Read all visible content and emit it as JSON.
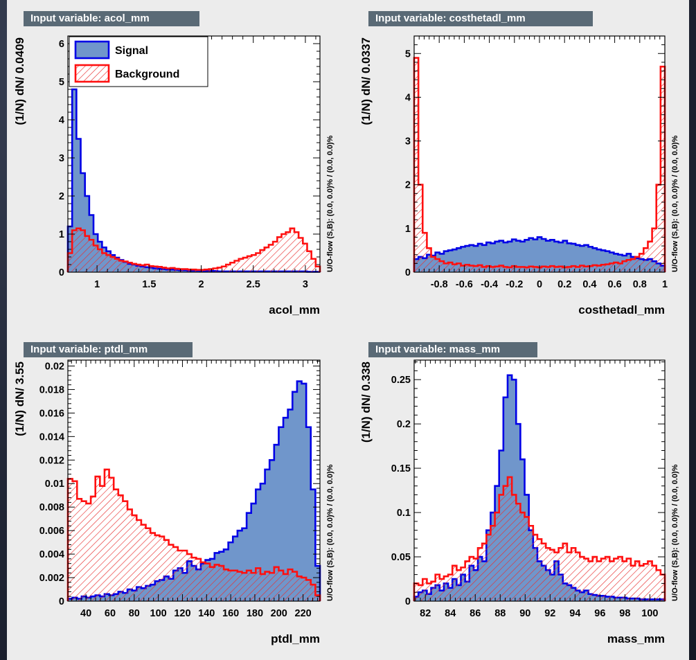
{
  "colors": {
    "signal_fill": "#7096cb",
    "signal_line": "#0000e6",
    "background_line": "#ff1010",
    "background_hatch": "#e83030"
  },
  "legend": {
    "signal": "Signal",
    "background": "Background"
  },
  "chart_data": [
    {
      "type": "histogram",
      "panel_title": "Input variable: acol_mm",
      "xlabel": "acol_mm",
      "ylabel": "(1/N) dN/ 0.0409",
      "side_label": "U/O-flow (S,B): (0.0, 0.0)% / (0.0, 0.0)%",
      "xlim": [
        0.72,
        3.14
      ],
      "ylim": [
        0,
        6.2
      ],
      "xticks": [
        1,
        1.5,
        2,
        2.5,
        3
      ],
      "xtick_labels": [
        "1",
        "1.5",
        "2",
        "2.5",
        "3"
      ],
      "yticks": [
        0,
        1,
        2,
        3,
        4,
        5,
        6
      ],
      "ytick_labels": [
        "0",
        "1",
        "2",
        "3",
        "4",
        "5",
        "6"
      ],
      "legend": true,
      "series": [
        {
          "name": "Signal",
          "values": [
            1.2,
            4.8,
            3.5,
            2.6,
            2.0,
            1.5,
            1.0,
            0.8,
            0.65,
            0.55,
            0.45,
            0.38,
            0.32,
            0.27,
            0.22,
            0.2,
            0.17,
            0.15,
            0.13,
            0.12,
            0.1,
            0.09,
            0.08,
            0.07,
            0.07,
            0.06,
            0.05,
            0.05,
            0.04,
            0.04,
            0.04,
            0.03,
            0.03,
            0.03,
            0.03,
            0.02,
            0.02,
            0.02,
            0.02,
            0.02,
            0.02,
            0.02,
            0.02,
            0.02,
            0.02,
            0.02,
            0.02,
            0.02,
            0.02,
            0.02,
            0.02,
            0.02,
            0.02,
            0.02,
            0.02,
            0.02,
            0.01,
            0.01,
            0.01
          ]
        },
        {
          "name": "Background",
          "values": [
            0.5,
            1.1,
            1.15,
            1.1,
            0.95,
            0.85,
            0.7,
            0.6,
            0.5,
            0.45,
            0.4,
            0.35,
            0.3,
            0.28,
            0.25,
            0.22,
            0.2,
            0.18,
            0.2,
            0.16,
            0.15,
            0.14,
            0.12,
            0.1,
            0.11,
            0.09,
            0.08,
            0.08,
            0.07,
            0.07,
            0.06,
            0.06,
            0.07,
            0.08,
            0.1,
            0.12,
            0.15,
            0.2,
            0.25,
            0.3,
            0.35,
            0.38,
            0.42,
            0.45,
            0.5,
            0.58,
            0.65,
            0.72,
            0.8,
            0.92,
            1.0,
            1.05,
            1.15,
            1.05,
            0.9,
            0.75,
            0.55,
            0.35,
            0.15
          ]
        }
      ]
    },
    {
      "type": "histogram",
      "panel_title": "Input variable: costhetadl_mm",
      "xlabel": "costhetadl_mm",
      "ylabel": "(1/N) dN/ 0.0337",
      "side_label": "U/O-flow (S,B): (0.0, 0.0)% / (0.0, 0.0)%",
      "xlim": [
        -1,
        1
      ],
      "ylim": [
        0,
        5.4
      ],
      "xticks": [
        -0.8,
        -0.6,
        -0.4,
        -0.2,
        0,
        0.2,
        0.4,
        0.6,
        0.8,
        1
      ],
      "xtick_labels": [
        "-0.8",
        "-0.6",
        "-0.4",
        "-0.2",
        "0",
        "0.2",
        "0.4",
        "0.6",
        "0.8",
        "1"
      ],
      "yticks": [
        0,
        1,
        2,
        3,
        4,
        5
      ],
      "ytick_labels": [
        "0",
        "1",
        "2",
        "3",
        "4",
        "5"
      ],
      "legend": false,
      "series": [
        {
          "name": "Signal",
          "values": [
            0.3,
            0.35,
            0.32,
            0.4,
            0.38,
            0.45,
            0.42,
            0.48,
            0.5,
            0.52,
            0.55,
            0.58,
            0.6,
            0.62,
            0.6,
            0.65,
            0.62,
            0.68,
            0.66,
            0.7,
            0.72,
            0.68,
            0.7,
            0.75,
            0.72,
            0.7,
            0.74,
            0.78,
            0.75,
            0.8,
            0.76,
            0.72,
            0.74,
            0.7,
            0.68,
            0.72,
            0.66,
            0.65,
            0.62,
            0.6,
            0.62,
            0.58,
            0.55,
            0.52,
            0.5,
            0.48,
            0.45,
            0.42,
            0.4,
            0.38,
            0.42,
            0.35,
            0.32,
            0.3,
            0.28,
            0.3,
            0.25,
            0.2,
            0.15
          ]
        },
        {
          "name": "Background",
          "values": [
            4.9,
            2.0,
            0.9,
            0.55,
            0.35,
            0.3,
            0.25,
            0.2,
            0.22,
            0.18,
            0.2,
            0.15,
            0.17,
            0.15,
            0.14,
            0.16,
            0.12,
            0.14,
            0.12,
            0.13,
            0.15,
            0.12,
            0.11,
            0.14,
            0.12,
            0.12,
            0.11,
            0.13,
            0.12,
            0.11,
            0.13,
            0.12,
            0.14,
            0.12,
            0.13,
            0.11,
            0.12,
            0.14,
            0.12,
            0.15,
            0.13,
            0.14,
            0.16,
            0.15,
            0.17,
            0.18,
            0.2,
            0.22,
            0.2,
            0.25,
            0.28,
            0.3,
            0.35,
            0.42,
            0.55,
            0.7,
            1.0,
            2.0,
            4.7
          ]
        }
      ]
    },
    {
      "type": "histogram",
      "panel_title": "Input variable: ptdl_mm",
      "xlabel": "ptdl_mm",
      "ylabel": "(1/N) dN/ 3.55",
      "side_label": "U/O-flow (S,B): (0.0, 0.0)% / (0.0, 0.0)%",
      "xlim": [
        25,
        234
      ],
      "ylim": [
        0,
        0.0205
      ],
      "xticks": [
        40,
        60,
        80,
        100,
        120,
        140,
        160,
        180,
        200,
        220
      ],
      "xtick_labels": [
        "40",
        "60",
        "80",
        "100",
        "120",
        "140",
        "160",
        "180",
        "200",
        "220"
      ],
      "yticks": [
        0,
        0.002,
        0.004,
        0.006,
        0.008,
        0.01,
        0.012,
        0.014,
        0.016,
        0.018,
        0.02
      ],
      "ytick_labels": [
        "0",
        "0.002",
        "0.004",
        "0.006",
        "0.008",
        "0.01",
        "0.012",
        "0.014",
        "0.016",
        "0.018",
        "0.02"
      ],
      "legend": false,
      "series": [
        {
          "name": "Signal",
          "values": [
            0.0002,
            0.0003,
            0.0002,
            0.0004,
            0.0003,
            0.0004,
            0.0005,
            0.0004,
            0.0006,
            0.0005,
            0.0006,
            0.0008,
            0.0007,
            0.001,
            0.0009,
            0.0012,
            0.0011,
            0.0013,
            0.0014,
            0.0017,
            0.0018,
            0.0021,
            0.0019,
            0.0026,
            0.0028,
            0.0024,
            0.0034,
            0.003,
            0.0027,
            0.0032,
            0.0035,
            0.0036,
            0.0041,
            0.0042,
            0.0044,
            0.005,
            0.0055,
            0.006,
            0.0062,
            0.0075,
            0.0083,
            0.0095,
            0.01,
            0.0112,
            0.012,
            0.0133,
            0.0148,
            0.0156,
            0.0163,
            0.0178,
            0.0187,
            0.0185,
            0.0148,
            0.0095,
            0.003
          ]
        },
        {
          "name": "Background",
          "values": [
            0.0104,
            0.0102,
            0.0087,
            0.0085,
            0.0083,
            0.0089,
            0.0106,
            0.0098,
            0.0112,
            0.0105,
            0.0095,
            0.009,
            0.0085,
            0.0078,
            0.0073,
            0.0069,
            0.0065,
            0.0062,
            0.0058,
            0.0056,
            0.0055,
            0.0052,
            0.0048,
            0.0046,
            0.0043,
            0.0043,
            0.004,
            0.0037,
            0.0036,
            0.0033,
            0.0032,
            0.0029,
            0.0031,
            0.003,
            0.0027,
            0.0026,
            0.0026,
            0.0025,
            0.0024,
            0.0026,
            0.0024,
            0.0028,
            0.0023,
            0.0025,
            0.0024,
            0.0029,
            0.0026,
            0.0023,
            0.0027,
            0.0025,
            0.0021,
            0.002,
            0.0018,
            0.0014,
            0.0005
          ]
        }
      ]
    },
    {
      "type": "histogram",
      "panel_title": "Input variable: mass_mm",
      "xlabel": "mass_mm",
      "ylabel": "(1/N) dN/ 0.338",
      "side_label": "U/O-flow (S,B): (0.0, 0.0)% / (0.0, 0.0)%",
      "xlim": [
        81.1,
        101.2
      ],
      "ylim": [
        0,
        0.272
      ],
      "xticks": [
        82,
        84,
        86,
        88,
        90,
        92,
        94,
        96,
        98,
        100
      ],
      "xtick_labels": [
        "82",
        "84",
        "86",
        "88",
        "90",
        "92",
        "94",
        "96",
        "98",
        "100"
      ],
      "yticks": [
        0,
        0.05,
        0.1,
        0.15,
        0.2,
        0.25
      ],
      "ytick_labels": [
        "0",
        "0.05",
        "0.1",
        "0.15",
        "0.2",
        "0.25"
      ],
      "legend": false,
      "series": [
        {
          "name": "Signal",
          "values": [
            0.005,
            0.01,
            0.012,
            0.008,
            0.015,
            0.018,
            0.012,
            0.02,
            0.015,
            0.025,
            0.018,
            0.03,
            0.022,
            0.04,
            0.035,
            0.05,
            0.045,
            0.08,
            0.1,
            0.13,
            0.17,
            0.23,
            0.255,
            0.25,
            0.2,
            0.16,
            0.12,
            0.08,
            0.06,
            0.045,
            0.04,
            0.035,
            0.03,
            0.045,
            0.03,
            0.02,
            0.018,
            0.015,
            0.012,
            0.01,
            0.012,
            0.008,
            0.007,
            0.006,
            0.006,
            0.005,
            0.005,
            0.004,
            0.004,
            0.004,
            0.003,
            0.003,
            0.003,
            0.002,
            0.002,
            0.002,
            0.002,
            0.002,
            0.002
          ]
        },
        {
          "name": "Background",
          "values": [
            0.02,
            0.018,
            0.025,
            0.02,
            0.022,
            0.03,
            0.025,
            0.028,
            0.03,
            0.04,
            0.035,
            0.038,
            0.045,
            0.05,
            0.048,
            0.06,
            0.065,
            0.075,
            0.085,
            0.1,
            0.12,
            0.13,
            0.14,
            0.12,
            0.11,
            0.1,
            0.095,
            0.085,
            0.075,
            0.07,
            0.065,
            0.06,
            0.058,
            0.055,
            0.06,
            0.065,
            0.055,
            0.06,
            0.055,
            0.05,
            0.048,
            0.045,
            0.05,
            0.045,
            0.048,
            0.05,
            0.045,
            0.048,
            0.05,
            0.045,
            0.048,
            0.04,
            0.045,
            0.04,
            0.042,
            0.045,
            0.04,
            0.035,
            0.03
          ]
        }
      ]
    }
  ]
}
